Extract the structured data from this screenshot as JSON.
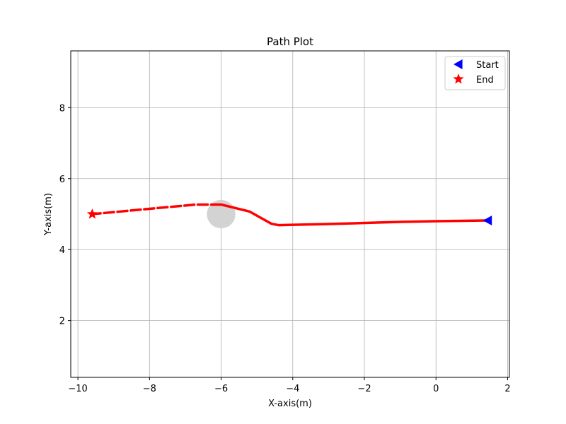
{
  "chart_data": {
    "type": "line",
    "title": "Path Plot",
    "xlabel": "X-axis(m)",
    "ylabel": "Y-axis(m)",
    "xlim": [
      -10.2,
      2.05
    ],
    "ylim": [
      0.4,
      9.6
    ],
    "xticks": [
      -10,
      -8,
      -6,
      -4,
      -2,
      0,
      2
    ],
    "yticks": [
      2,
      4,
      6,
      8
    ],
    "grid": true,
    "legend_position": "top-right",
    "colors": {
      "path": "#ff0000",
      "start": "#0000ff",
      "end": "#ff0000",
      "obstacle": "#d3d3d3",
      "grid": "#b0b0b0"
    },
    "series": [
      {
        "style": "solid",
        "x": [
          1.4,
          0.0,
          -1.0,
          -2.0,
          -3.0,
          -4.0,
          -4.4,
          -4.6,
          -5.2,
          -6.0
        ],
        "y": [
          4.82,
          4.8,
          4.78,
          4.75,
          4.72,
          4.7,
          4.69,
          4.73,
          5.07,
          5.27
        ]
      },
      {
        "style": "dashed",
        "x": [
          -6.0,
          -6.7,
          -8.0,
          -9.6
        ],
        "y": [
          5.27,
          5.27,
          5.15,
          5.0
        ]
      }
    ],
    "obstacle": {
      "x": -6.0,
      "y": 5.0,
      "r": 0.4
    },
    "start": {
      "label": "Start",
      "x": 1.45,
      "y": 4.82,
      "marker": "triangle-left"
    },
    "end": {
      "label": "End",
      "x": -9.6,
      "y": 5.0,
      "marker": "star"
    }
  }
}
